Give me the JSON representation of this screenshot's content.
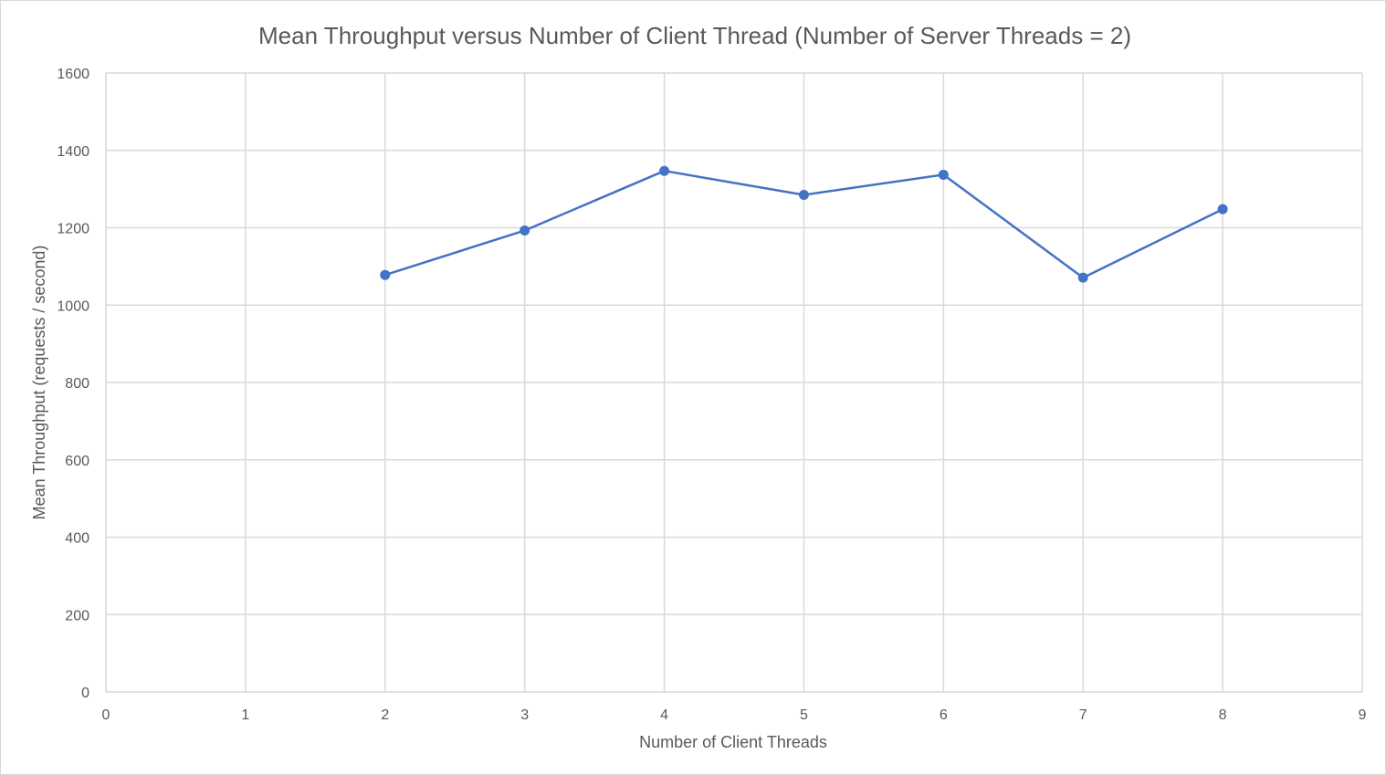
{
  "chart_data": {
    "type": "line",
    "title": "Mean Throughput versus Number of Client Thread (Number of Server Threads = 2)",
    "xlabel": "Number of Client Threads",
    "ylabel": "Mean Throughput (requests / second)",
    "xlim": [
      0,
      9
    ],
    "ylim": [
      0,
      1600
    ],
    "x_ticks": [
      "0",
      "1",
      "2",
      "3",
      "4",
      "5",
      "6",
      "7",
      "8",
      "9"
    ],
    "y_ticks": [
      "0",
      "200",
      "400",
      "600",
      "800",
      "1000",
      "1200",
      "1400",
      "1600"
    ],
    "grid": true,
    "legend": "none",
    "series": [
      {
        "x": [
          2,
          3,
          4,
          5,
          6,
          7,
          8
        ],
        "values": [
          1078,
          1193,
          1347,
          1285,
          1337,
          1071,
          1248
        ],
        "color": "#4472c4"
      }
    ]
  }
}
